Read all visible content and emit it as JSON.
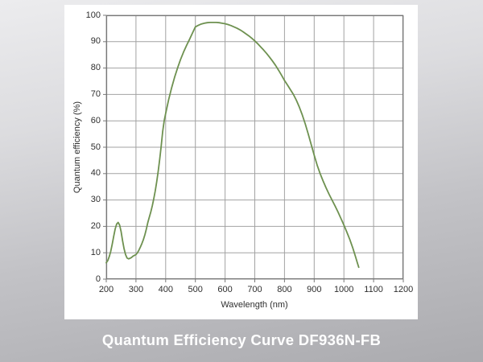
{
  "caption": "Quantum Efficiency Curve DF936N-FB",
  "colors": {
    "curve": "#6e9150",
    "grid": "#a2a2a2",
    "plot_border": "#787878",
    "tick_text": "#2e2e2e",
    "panel_background": "#ffffff",
    "caption_text": "#ffffff",
    "background_top": "#ececee",
    "background_bottom": "#ababaf"
  },
  "chart_data": {
    "type": "line",
    "title": "Quantum Efficiency Curve DF936N-FB",
    "xlabel": "Wavelength (nm)",
    "ylabel": "Quantum efficiency (%)",
    "xlim": [
      200,
      1200
    ],
    "ylim": [
      0,
      100
    ],
    "x_ticks": [
      200,
      300,
      400,
      500,
      600,
      700,
      800,
      900,
      1000,
      1100,
      1200
    ],
    "y_ticks": [
      0,
      10,
      20,
      30,
      40,
      50,
      60,
      70,
      80,
      90,
      100
    ],
    "grid": true,
    "legend": "none",
    "series": [
      {
        "name": "DF936N-FB quantum efficiency",
        "points": [
          [
            200,
            6.2
          ],
          [
            205,
            7.0
          ],
          [
            210,
            8.5
          ],
          [
            215,
            10.5
          ],
          [
            220,
            13.2
          ],
          [
            225,
            16.2
          ],
          [
            230,
            19.0
          ],
          [
            235,
            20.9
          ],
          [
            240,
            21.5
          ],
          [
            245,
            20.5
          ],
          [
            250,
            18.0
          ],
          [
            255,
            14.5
          ],
          [
            260,
            11.5
          ],
          [
            265,
            9.3
          ],
          [
            270,
            8.0
          ],
          [
            275,
            7.7
          ],
          [
            280,
            7.9
          ],
          [
            285,
            8.2
          ],
          [
            290,
            8.7
          ],
          [
            295,
            9.0
          ],
          [
            300,
            9.3
          ],
          [
            305,
            10.0
          ],
          [
            310,
            11.0
          ],
          [
            315,
            12.2
          ],
          [
            320,
            13.5
          ],
          [
            325,
            15.0
          ],
          [
            330,
            16.8
          ],
          [
            335,
            19.0
          ],
          [
            340,
            21.5
          ],
          [
            345,
            23.5
          ],
          [
            350,
            25.5
          ],
          [
            355,
            27.8
          ],
          [
            360,
            30.5
          ],
          [
            365,
            33.5
          ],
          [
            370,
            37.0
          ],
          [
            375,
            41.0
          ],
          [
            380,
            45.5
          ],
          [
            385,
            50.5
          ],
          [
            390,
            56.0
          ],
          [
            395,
            60.0
          ],
          [
            400,
            62.8
          ],
          [
            410,
            68.0
          ],
          [
            420,
            72.5
          ],
          [
            430,
            76.5
          ],
          [
            440,
            80.0
          ],
          [
            450,
            83.2
          ],
          [
            460,
            86.0
          ],
          [
            470,
            88.5
          ],
          [
            480,
            90.8
          ],
          [
            490,
            93.2
          ],
          [
            500,
            95.6
          ],
          [
            510,
            96.2
          ],
          [
            520,
            96.7
          ],
          [
            530,
            97.0
          ],
          [
            540,
            97.2
          ],
          [
            550,
            97.3
          ],
          [
            560,
            97.3
          ],
          [
            570,
            97.3
          ],
          [
            580,
            97.2
          ],
          [
            590,
            97.0
          ],
          [
            600,
            96.8
          ],
          [
            610,
            96.5
          ],
          [
            620,
            96.1
          ],
          [
            630,
            95.6
          ],
          [
            640,
            95.1
          ],
          [
            650,
            94.5
          ],
          [
            660,
            93.8
          ],
          [
            670,
            93.0
          ],
          [
            680,
            92.2
          ],
          [
            690,
            91.3
          ],
          [
            700,
            90.3
          ],
          [
            710,
            89.2
          ],
          [
            720,
            88.0
          ],
          [
            730,
            86.8
          ],
          [
            740,
            85.5
          ],
          [
            750,
            84.1
          ],
          [
            760,
            82.6
          ],
          [
            770,
            81.0
          ],
          [
            780,
            79.2
          ],
          [
            790,
            77.3
          ],
          [
            800,
            75.3
          ],
          [
            810,
            73.6
          ],
          [
            820,
            71.8
          ],
          [
            830,
            70.0
          ],
          [
            840,
            67.8
          ],
          [
            850,
            65.2
          ],
          [
            860,
            62.2
          ],
          [
            870,
            58.8
          ],
          [
            880,
            55.0
          ],
          [
            890,
            51.0
          ],
          [
            900,
            47.0
          ],
          [
            910,
            43.2
          ],
          [
            920,
            40.0
          ],
          [
            930,
            37.2
          ],
          [
            940,
            34.6
          ],
          [
            950,
            32.2
          ],
          [
            960,
            30.0
          ],
          [
            970,
            27.8
          ],
          [
            980,
            25.5
          ],
          [
            990,
            23.0
          ],
          [
            1000,
            20.5
          ],
          [
            1010,
            17.8
          ],
          [
            1020,
            15.0
          ],
          [
            1030,
            11.8
          ],
          [
            1040,
            8.2
          ],
          [
            1045,
            6.3
          ],
          [
            1050,
            4.5
          ]
        ]
      }
    ]
  }
}
